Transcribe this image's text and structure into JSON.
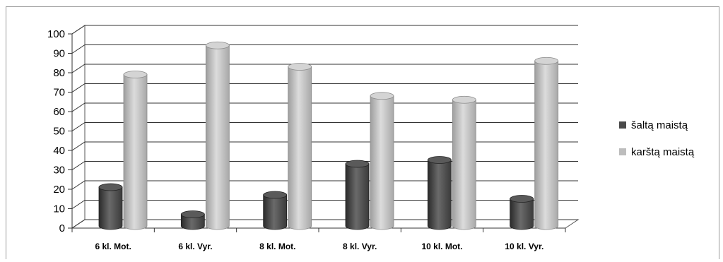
{
  "chart_data": {
    "type": "bar",
    "title": "",
    "xlabel": "",
    "ylabel": "",
    "ylim": [
      0,
      100
    ],
    "yticks": [
      0,
      10,
      20,
      30,
      40,
      50,
      60,
      70,
      80,
      90,
      100
    ],
    "categories": [
      "6 kl. Mot.",
      "6 kl. Vyr.",
      "8 kl. Mot.",
      "8 kl. Vyr.",
      "10 kl. Mot.",
      "10 kl. Vyr."
    ],
    "series": [
      {
        "name": "šaltą maistą",
        "color": "#4a4a4a",
        "values": [
          20,
          6,
          16,
          32,
          34,
          14
        ]
      },
      {
        "name": "karštą maistą",
        "color": "#bdbdbd",
        "values": [
          78,
          93,
          82,
          67,
          65,
          85
        ]
      }
    ],
    "grid": true,
    "style": "3d-cylinder",
    "legend_position": "right"
  }
}
